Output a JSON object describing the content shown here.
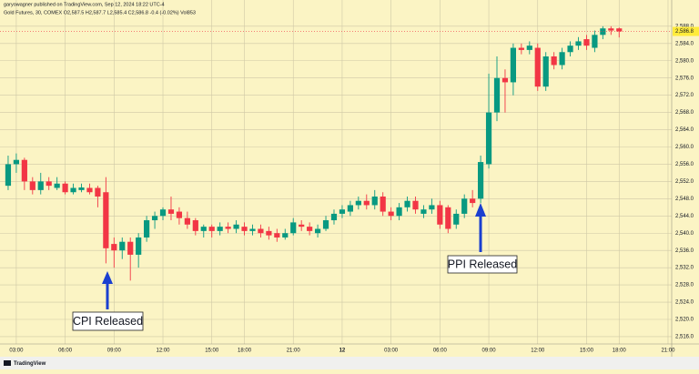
{
  "chart_data": {
    "type": "candlestick",
    "title": "garyowagner published on TradingView.com, Sep 12, 2024 18:22 UTC-4",
    "subtitle": "Gold Futures, 30, COMEX  O2,587.5 H2,587.7 L2,585.4 C2,586.8 -0.4 (-0.02%) Vol853",
    "branding": "TradingView",
    "annotations": [
      "CPI Released",
      "PPI Released"
    ],
    "up_color": "#089981",
    "down_color": "#f23645",
    "grid": true,
    "last_price": {
      "value": 2586.8,
      "label": "2,586.8"
    },
    "xlim": [
      -1,
      81.45
    ],
    "xticks": [
      {
        "value": 1,
        "label": "03:00"
      },
      {
        "value": 7,
        "label": "06:00"
      },
      {
        "value": 13,
        "label": "09:00"
      },
      {
        "value": 19,
        "label": "12:00"
      },
      {
        "value": 25,
        "label": "15:00"
      },
      {
        "value": 29,
        "label": "18:00"
      },
      {
        "value": 35,
        "label": "21:00"
      },
      {
        "value": 41,
        "label": "12"
      },
      {
        "value": 47,
        "label": "03:00"
      },
      {
        "value": 53,
        "label": "06:00"
      },
      {
        "value": 59,
        "label": "09:00"
      },
      {
        "value": 65,
        "label": "12:00"
      },
      {
        "value": 71,
        "label": "15:00"
      },
      {
        "value": 75,
        "label": "18:00"
      },
      {
        "value": 81,
        "label": "21:00"
      }
    ],
    "ylim": [
      2514.3,
      2590.5
    ],
    "yticks": [
      {
        "value": 2516,
        "label": "2,516.0"
      },
      {
        "value": 2520,
        "label": "2,520.0"
      },
      {
        "value": 2524,
        "label": "2,524.0"
      },
      {
        "value": 2528,
        "label": "2,528.0"
      },
      {
        "value": 2532,
        "label": "2,532.0"
      },
      {
        "value": 2536,
        "label": "2,536.0"
      },
      {
        "value": 2540,
        "label": "2,540.0"
      },
      {
        "value": 2544,
        "label": "2,544.0"
      },
      {
        "value": 2548,
        "label": "2,548.0"
      },
      {
        "value": 2552,
        "label": "2,552.0"
      },
      {
        "value": 2556,
        "label": "2,556.0"
      },
      {
        "value": 2560,
        "label": "2,560.0"
      },
      {
        "value": 2564,
        "label": "2,564.0"
      },
      {
        "value": 2568,
        "label": "2,568.0"
      },
      {
        "value": 2572,
        "label": "2,572.0"
      },
      {
        "value": 2576,
        "label": "2,576.0"
      },
      {
        "value": 2580,
        "label": "2,580.0"
      },
      {
        "value": 2584,
        "label": "2,584.0"
      },
      {
        "value": 2588,
        "label": "2,588.0"
      }
    ],
    "open": [
      2551,
      2556,
      2557,
      2552,
      2550,
      2552,
      2550.5,
      2551.5,
      2549.5,
      2550,
      2550.5,
      2550.5,
      2549.5,
      2537.5,
      2536,
      2538,
      2535,
      2539,
      2543,
      2544,
      2545.5,
      2545,
      2543.5,
      2543,
      2540.5,
      2541.5,
      2540.5,
      2541.5,
      2541,
      2541.5,
      2540.5,
      2541,
      2540.5,
      2540,
      2539,
      2540,
      2542,
      2541.5,
      2540,
      2541,
      2543,
      2544.5,
      2545,
      2546.5,
      2547.5,
      2546.5,
      2548.5,
      2545,
      2544,
      2546,
      2547.5,
      2544.5,
      2545.5,
      2546.5,
      2546,
      2542,
      2544.5,
      2548,
      2548,
      2556,
      2568,
      2576,
      2575,
      2583,
      2582.5,
      2583,
      2574,
      2581,
      2579,
      2582,
      2583.5,
      2585,
      2583,
      2586,
      2587.5,
      2587.5
    ],
    "high": [
      2558,
      2558.5,
      2557.5,
      2553,
      2554,
      2553,
      2553,
      2552,
      2551.5,
      2551.5,
      2551.5,
      2551,
      2553,
      2539,
      2539,
      2539,
      2540,
      2544,
      2545,
      2546,
      2548.5,
      2546,
      2545,
      2543.5,
      2542,
      2542,
      2542.5,
      2542.5,
      2543,
      2542.5,
      2542,
      2542,
      2541.5,
      2541,
      2541,
      2543.5,
      2543,
      2542.5,
      2542,
      2544,
      2545.5,
      2546.5,
      2547.5,
      2548.5,
      2549,
      2550,
      2549.5,
      2546,
      2547,
      2548.5,
      2548.5,
      2546.5,
      2548,
      2547.5,
      2546.5,
      2545.5,
      2549,
      2550,
      2558,
      2577,
      2581,
      2578,
      2584,
      2584,
      2584.5,
      2584,
      2582,
      2582,
      2583,
      2584.5,
      2585.5,
      2586,
      2587,
      2588,
      2588,
      2587.7
    ],
    "low": [
      2550,
      2554,
      2550,
      2549,
      2549,
      2550,
      2550,
      2549,
      2549,
      2549.5,
      2549,
      2546,
      2533,
      2532,
      2534,
      2529,
      2532,
      2538,
      2541,
      2543,
      2543,
      2542,
      2541,
      2539.5,
      2539,
      2539,
      2539.5,
      2540,
      2540,
      2539.5,
      2539.5,
      2539,
      2538.5,
      2538,
      2538.5,
      2539.5,
      2540.5,
      2539.5,
      2539,
      2540.5,
      2542,
      2543.5,
      2544,
      2545.5,
      2545.5,
      2545.5,
      2544,
      2543,
      2543,
      2545,
      2544.5,
      2543.5,
      2544.5,
      2541,
      2540,
      2541,
      2543.5,
      2546,
      2547,
      2555,
      2566,
      2568,
      2572,
      2581.5,
      2581.5,
      2573,
      2573,
      2578,
      2578,
      2581,
      2582.5,
      2582.5,
      2582,
      2585,
      2586,
      2585.4
    ],
    "close": [
      2556,
      2557,
      2552,
      2550,
      2552,
      2551,
      2551.5,
      2549.5,
      2550.5,
      2550.6,
      2549.5,
      2548.5,
      2536.5,
      2536,
      2538,
      2535,
      2539,
      2543,
      2544,
      2545.5,
      2544.5,
      2543.5,
      2542,
      2540.5,
      2541.5,
      2540.5,
      2541.5,
      2541,
      2542,
      2540.5,
      2541,
      2540,
      2539.5,
      2539,
      2540,
      2542.5,
      2541.5,
      2540.5,
      2541,
      2543,
      2544.5,
      2545.5,
      2546.5,
      2547.5,
      2546.5,
      2548.5,
      2545,
      2544,
      2546,
      2547.5,
      2545.5,
      2545.5,
      2546.5,
      2542,
      2541,
      2544.5,
      2548,
      2547,
      2556.5,
      2568,
      2576,
      2575,
      2583,
      2582.5,
      2583.5,
      2574,
      2581,
      2579,
      2582,
      2583.5,
      2584.5,
      2583.5,
      2586,
      2587.5,
      2587,
      2586.8
    ]
  }
}
